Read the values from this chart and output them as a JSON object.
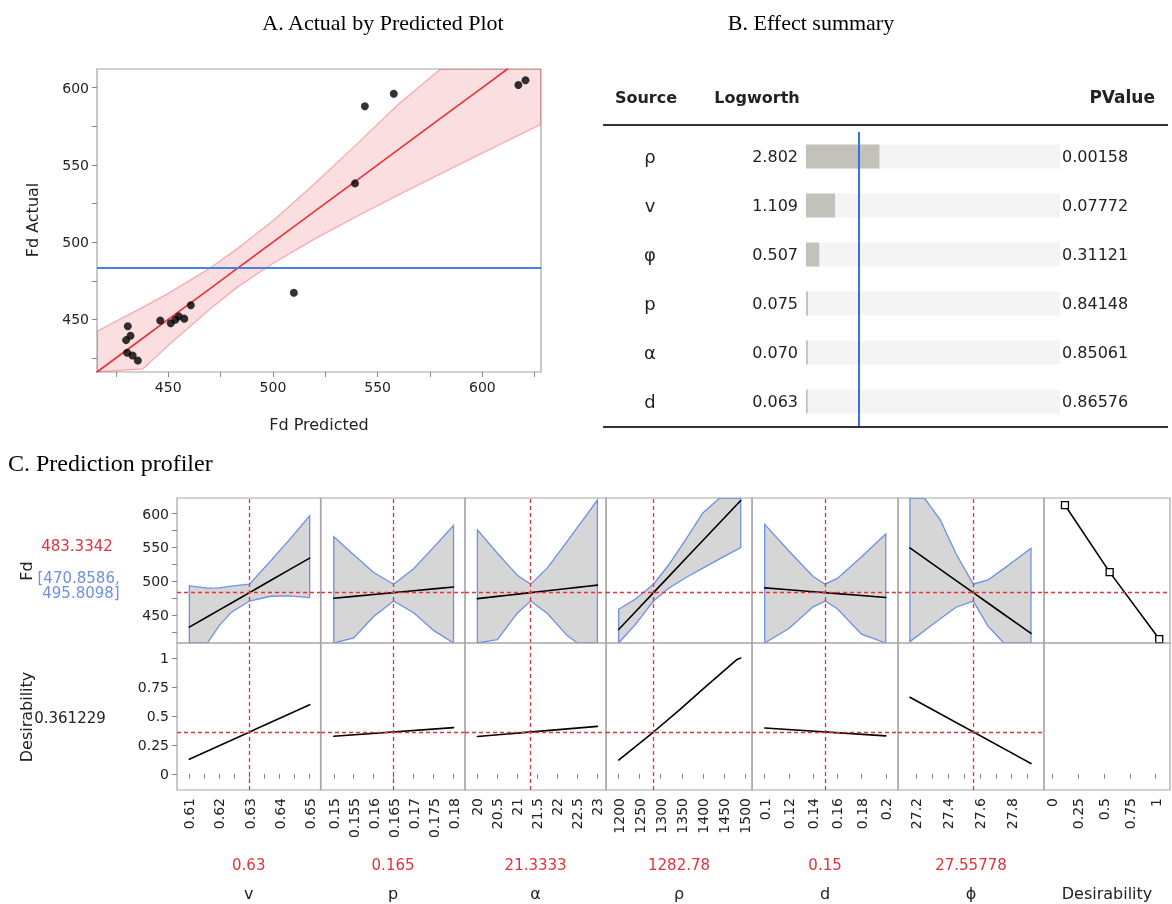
{
  "chart_data": [
    {
      "type": "scatter",
      "title": "A. Actual by Predicted Plot",
      "xlabel": "Fd Predicted",
      "ylabel": "Fd Actual",
      "xlim": [
        416,
        628
      ],
      "ylim": [
        416,
        612
      ],
      "xticks": [
        {
          "value": 425,
          "label": null
        },
        450,
        {
          "value": 475,
          "label": null
        },
        500,
        {
          "value": 525,
          "label": null
        },
        550,
        {
          "value": 575,
          "label": null
        },
        600,
        {
          "value": 625,
          "label": null
        }
      ],
      "yticks": [
        {
          "value": 425,
          "label": null
        },
        450,
        {
          "value": 475,
          "label": null
        },
        500,
        {
          "value": 525,
          "label": null
        },
        550,
        {
          "value": 575,
          "label": null
        },
        600
      ],
      "ref_lines": [
        {
          "axis": "y",
          "value": 483.3,
          "color": "#4a7fe8"
        }
      ],
      "series": [
        {
          "type": "scatter",
          "color": "#000000",
          "x": [
            430.7,
            429.9,
            432,
            430.4,
            433,
            435.5,
            446.2,
            451.2,
            453.4,
            455.1,
            457.7,
            460.8,
            510,
            539.2,
            543.9,
            557.7,
            617.2,
            620.6
          ],
          "values": [
            445.6,
            436.6,
            439.4,
            428.5,
            426.7,
            423.4,
            449.3,
            447.5,
            449.8,
            452,
            450.5,
            459.2,
            467.3,
            538,
            587.9,
            596,
            601.7,
            604.7
          ]
        },
        {
          "type": "line",
          "color": "#e8303a",
          "x": [
            416,
            438,
            450,
            470,
            483,
            500,
            520,
            540,
            560,
            580,
            600,
            612,
            628
          ],
          "values": [
            416,
            438,
            450,
            470,
            483,
            500,
            520,
            540,
            560,
            580,
            600,
            612,
            null
          ],
          "upper": [
            442.4,
            458,
            466.9,
            483.3,
            495.8,
            513.8,
            537.9,
            563.4,
            589.4,
            612,
            612,
            612,
            612
          ],
          "lower": [
            416,
            418,
            433.1,
            456.7,
            470.9,
            486.2,
            502.1,
            516.6,
            530.6,
            544.2,
            557.6,
            565.6,
            576.2
          ]
        }
      ]
    },
    {
      "type": "bar",
      "orientation": "horizontal",
      "title": "B. Effect summary",
      "ylabel": "Source",
      "xlabel": "Logworth",
      "categories": [
        "ρ",
        "v",
        "φ",
        "p",
        "α",
        "d"
      ],
      "values": [
        2.802,
        1.109,
        0.507,
        0.075,
        0.07,
        0.063
      ],
      "value_labels": [
        "2.802",
        "1.109",
        "0.507",
        "0.075",
        "0.070",
        "0.063"
      ],
      "color": "#c2c2ba",
      "xlim": [
        0,
        9.7
      ],
      "tick_labels": "y",
      "ref_lines": [
        {
          "axis": "x",
          "value": 2,
          "color": "#3a6fe0"
        }
      ],
      "annotations": [
        "PValue",
        "0.00158",
        "0.07772",
        "0.31121",
        "0.84148",
        "0.85061",
        "0.86576"
      ]
    },
    {
      "type": "line",
      "title": "C. Prediction profiler",
      "ylabel": "Fd",
      "xlim": [
        0.6059,
        0.6536
      ],
      "ylim": [
        409,
        623
      ],
      "yticks": [
        {
          "value": 425,
          "label": null
        },
        450,
        {
          "value": 475,
          "label": null
        },
        500,
        {
          "value": 525,
          "label": null
        },
        550,
        {
          "value": 575,
          "label": null
        },
        600
      ],
      "tick_labels": "y",
      "marker": "none",
      "annotations": [
        "[470.8586, 495.8098]"
      ],
      "ref_lines": [
        {
          "axis": "x",
          "value": 0.63,
          "color": "#e8303a",
          "line_style": "dashed"
        },
        {
          "axis": "y",
          "value": 483.3342,
          "label": "483.3342",
          "color": "#e8303a",
          "line_style": "dashed"
        }
      ],
      "series": [
        {
          "color": "#000000",
          "x": [
            0.61,
            0.616,
            0.62,
            0.624,
            0.63,
            0.637,
            0.643,
            0.65
          ],
          "values": [
            432.4,
            447.7,
            457.9,
            468.1,
            483.35,
            501.2,
            516.5,
            534.3
          ],
          "upper": [
            493.2,
            490,
            490.5,
            493,
            495.8,
            530,
            560,
            596.6
          ],
          "lower": [
            409,
            409,
            435,
            454.5,
            470.9,
            478,
            478.5,
            476.1
          ]
        }
      ]
    },
    {
      "type": "line",
      "xlim": [
        0.1468,
        0.1829
      ],
      "ylim": [
        409,
        623
      ],
      "tick_labels": false,
      "marker": "none",
      "ref_lines": [
        {
          "axis": "x",
          "value": 0.165,
          "color": "#e8303a",
          "line_style": "dashed"
        },
        {
          "axis": "y",
          "value": 483.3342,
          "color": "#e8303a",
          "line_style": "dashed"
        }
      ],
      "series": [
        {
          "color": "#000000",
          "x": [
            0.15,
            0.155,
            0.16,
            0.165,
            0.17,
            0.175,
            0.18
          ],
          "values": [
            475,
            477.8,
            480.6,
            483.3,
            486.1,
            488.9,
            491.6
          ],
          "upper": [
            565.9,
            539.1,
            513.1,
            495.8,
            518.6,
            550.2,
            582.5
          ],
          "lower": [
            409,
            416.5,
            448.1,
            470.9,
            453.6,
            427.6,
            409
          ]
        }
      ]
    },
    {
      "type": "line",
      "xlim": [
        19.69,
        23.22
      ],
      "ylim": [
        409,
        623
      ],
      "tick_labels": false,
      "marker": "none",
      "ref_lines": [
        {
          "axis": "x",
          "value": 21.3333,
          "color": "#e8303a",
          "line_style": "dashed"
        },
        {
          "axis": "y",
          "value": 483.3342,
          "color": "#e8303a",
          "line_style": "dashed"
        }
      ],
      "series": [
        {
          "color": "#000000",
          "x": [
            20,
            20.5,
            21,
            21.3333,
            21.75,
            22.25,
            22.5,
            22.75,
            23
          ],
          "values": [
            474.5,
            477.8,
            481.1,
            483.3,
            486.1,
            489.4,
            491.1,
            492.7,
            494.4
          ],
          "upper": [
            575.9,
            541.5,
            509,
            495.8,
            519.8,
            559.3,
            579.5,
            599.7,
            620
          ],
          "lower": [
            409,
            414.1,
            453.2,
            470.9,
            452.4,
            419.5,
            409,
            409,
            409
          ]
        }
      ]
    },
    {
      "type": "line",
      "xlim": [
        1170,
        1517
      ],
      "ylim": [
        409,
        623
      ],
      "tick_labels": false,
      "marker": "none",
      "ref_lines": [
        {
          "axis": "x",
          "value": 1282.78,
          "color": "#e8303a",
          "line_style": "dashed"
        },
        {
          "axis": "y",
          "value": 483.3342,
          "color": "#e8303a",
          "line_style": "dashed"
        }
      ],
      "series": [
        {
          "color": "#000000",
          "x": [
            1200,
            1240,
            1282.78,
            1320,
            1360,
            1400,
            1440,
            1490
          ],
          "values": [
            428.9,
            455.2,
            483.3,
            507.7,
            534,
            560.2,
            586.5,
            619.3
          ],
          "upper": [
            458.9,
            474,
            495.8,
            525.2,
            562.4,
            600.9,
            623,
            623
          ],
          "lower": [
            409,
            436.4,
            470.9,
            490.2,
            505.6,
            519.5,
            533.1,
            549.8
          ]
        }
      ]
    },
    {
      "type": "line",
      "xlim": [
        0.0895,
        0.2102
      ],
      "ylim": [
        409,
        623
      ],
      "tick_labels": false,
      "marker": "none",
      "ref_lines": [
        {
          "axis": "x",
          "value": 0.15,
          "color": "#e8303a",
          "line_style": "dashed"
        },
        {
          "axis": "y",
          "value": 483.3342,
          "color": "#e8303a",
          "line_style": "dashed"
        }
      ],
      "series": [
        {
          "color": "#000000",
          "x": [
            0.1,
            0.12,
            0.14,
            0.15,
            0.16,
            0.18,
            0.2
          ],
          "values": [
            490.4,
            487.6,
            484.7,
            483.3,
            481.9,
            479.1,
            476.2
          ],
          "upper": [
            584.1,
            544.7,
            507.1,
            495.8,
            504.3,
            536.2,
            569.9
          ],
          "lower": [
            409,
            430.5,
            462.3,
            470.9,
            459.5,
            422,
            409
          ]
        }
      ]
    },
    {
      "type": "line",
      "xlim": [
        27.084,
        28.003
      ],
      "ylim": [
        409,
        623
      ],
      "tick_labels": false,
      "marker": "none",
      "ref_lines": [
        {
          "axis": "x",
          "value": 27.55778,
          "color": "#e8303a",
          "line_style": "dashed"
        },
        {
          "axis": "y",
          "value": 483.3342,
          "color": "#e8303a",
          "line_style": "dashed"
        }
      ],
      "series": [
        {
          "color": "#000000",
          "x": [
            27.159,
            27.25,
            27.35,
            27.45,
            27.55778,
            27.65,
            27.75,
            27.85,
            27.921
          ],
          "values": [
            549.3,
            534.2,
            517.7,
            501.1,
            483.3,
            468,
            451.4,
            434.9,
            423.1
          ],
          "upper": [
            623,
            623,
            590.6,
            540.4,
            495.8,
            502.1,
            518.8,
            536.4,
            548.9
          ],
          "lower": [
            411.1,
            427.2,
            444.8,
            461.8,
            470.9,
            433.9,
            409,
            409,
            409
          ]
        }
      ]
    },
    {
      "type": "line",
      "xlim": [
        -0.077,
        1.138
      ],
      "ylim": [
        409,
        623
      ],
      "tick_labels": false,
      "marker": "square",
      "ref_lines": [
        {
          "axis": "y",
          "value": 483.3342,
          "color": "#e8303a",
          "line_style": "dashed"
        }
      ],
      "series": [
        {
          "color": "#000000",
          "x": [
            0.125,
            0.556,
            1.034
          ],
          "values": [
            612.5,
            513.6,
            414.8
          ]
        }
      ]
    },
    {
      "type": "line",
      "ylabel": "Desirability",
      "xlabel": "v",
      "xlim": [
        0.6059,
        0.6536
      ],
      "ylim": [
        -0.14,
        1.13
      ],
      "xticks": [
        0.61,
        {
          "value": 0.615,
          "label": null
        },
        0.62,
        {
          "value": 0.625,
          "label": null
        },
        0.63,
        {
          "value": 0.635,
          "label": null
        },
        0.64,
        {
          "value": 0.645,
          "label": null
        },
        0.65
      ],
      "yticks": [
        0,
        0.25,
        0.5,
        0.75,
        1
      ],
      "marker": "none",
      "annotations": [
        "0.361229"
      ],
      "ref_lines": [
        {
          "axis": "x",
          "value": 0.63,
          "label": "0.63",
          "color": "#e8303a",
          "line_style": "dashed"
        },
        {
          "axis": "y",
          "value": 0.361229,
          "color": "#e8303a",
          "line_style": "dashed"
        }
      ],
      "series": [
        {
          "color": "#000000",
          "x": [
            0.61,
            0.65
          ],
          "values": [
            0.126,
            0.597
          ]
        }
      ]
    },
    {
      "type": "line",
      "xlabel": "p",
      "xlim": [
        0.1468,
        0.1829
      ],
      "ylim": [
        -0.14,
        1.13
      ],
      "xticks": [
        0.15,
        0.155,
        0.16,
        0.165,
        0.17,
        0.175,
        0.18
      ],
      "tick_labels": "x",
      "marker": "none",
      "ref_lines": [
        {
          "axis": "x",
          "value": 0.165,
          "label": "0.165",
          "color": "#e8303a",
          "line_style": "dashed"
        },
        {
          "axis": "y",
          "value": 0.361229,
          "color": "#e8303a",
          "line_style": "dashed"
        }
      ],
      "series": [
        {
          "color": "#000000",
          "x": [
            0.15,
            0.18
          ],
          "values": [
            0.324,
            0.399
          ]
        }
      ]
    },
    {
      "type": "line",
      "xlabel": "α",
      "xlim": [
        19.69,
        23.22
      ],
      "ylim": [
        -0.14,
        1.13
      ],
      "xticks": [
        20,
        20.5,
        21,
        21.5,
        22,
        22.5,
        23
      ],
      "tick_labels": "x",
      "marker": "none",
      "ref_lines": [
        {
          "axis": "x",
          "value": 21.3333,
          "label": "21.3333",
          "color": "#e8303a",
          "line_style": "dashed"
        },
        {
          "axis": "y",
          "value": 0.361229,
          "color": "#e8303a",
          "line_style": "dashed"
        }
      ],
      "series": [
        {
          "color": "#000000",
          "x": [
            20,
            23
          ],
          "values": [
            0.322,
            0.41
          ]
        }
      ]
    },
    {
      "type": "line",
      "xlabel": "ρ",
      "xlim": [
        1170,
        1517
      ],
      "ylim": [
        -0.14,
        1.13
      ],
      "xticks": [
        1200,
        1250,
        1300,
        1350,
        1400,
        1450,
        1500
      ],
      "tick_labels": "x",
      "marker": "none",
      "ref_lines": [
        {
          "axis": "x",
          "value": 1282.78,
          "label": "1282.78",
          "color": "#e8303a",
          "line_style": "dashed"
        },
        {
          "axis": "y",
          "value": 0.361229,
          "color": "#e8303a",
          "line_style": "dashed"
        }
      ],
      "series": [
        {
          "color": "#000000",
          "x": [
            1200,
            1282.78,
            1346,
            1400,
            1480,
            1490
          ],
          "values": [
            0.119,
            0.361,
            0.556,
            0.731,
            0.985,
            1.0
          ]
        }
      ]
    },
    {
      "type": "line",
      "xlabel": "d",
      "xlim": [
        0.0895,
        0.2102
      ],
      "ylim": [
        -0.14,
        1.13
      ],
      "xticks": [
        0.1,
        0.12,
        0.14,
        0.16,
        0.18,
        0.2
      ],
      "tick_labels": "x",
      "marker": "none",
      "ref_lines": [
        {
          "axis": "x",
          "value": 0.15,
          "label": "0.15",
          "color": "#e8303a",
          "line_style": "dashed"
        },
        {
          "axis": "y",
          "value": 0.361229,
          "color": "#e8303a",
          "line_style": "dashed"
        }
      ],
      "series": [
        {
          "color": "#000000",
          "x": [
            0.1,
            0.2
          ],
          "values": [
            0.395,
            0.328
          ]
        }
      ]
    },
    {
      "type": "line",
      "xlabel": "ϕ",
      "xlim": [
        27.084,
        28.003
      ],
      "ylim": [
        -0.14,
        1.13
      ],
      "xticks": [
        27.2,
        {
          "value": 27.3,
          "label": null
        },
        27.4,
        {
          "value": 27.5,
          "label": null
        },
        27.6,
        {
          "value": 27.7,
          "label": null
        },
        27.8,
        {
          "value": 27.9,
          "label": null
        }
      ],
      "tick_labels": "x",
      "marker": "none",
      "ref_lines": [
        {
          "axis": "x",
          "value": 27.55778,
          "label": "27.55778",
          "color": "#e8303a",
          "line_style": "dashed"
        },
        {
          "axis": "y",
          "value": 0.361229,
          "color": "#e8303a",
          "line_style": "dashed"
        }
      ],
      "series": [
        {
          "color": "#000000",
          "x": [
            27.159,
            27.921
          ],
          "values": [
            0.661,
            0.089
          ]
        }
      ]
    },
    {
      "type": "line",
      "xlabel": "Desirability",
      "xlim": [
        -0.077,
        1.138
      ],
      "ylim": [
        -0.14,
        1.13
      ],
      "xticks": [
        0,
        0.25,
        0.5,
        0.75,
        1
      ],
      "tick_labels": "x"
    }
  ]
}
